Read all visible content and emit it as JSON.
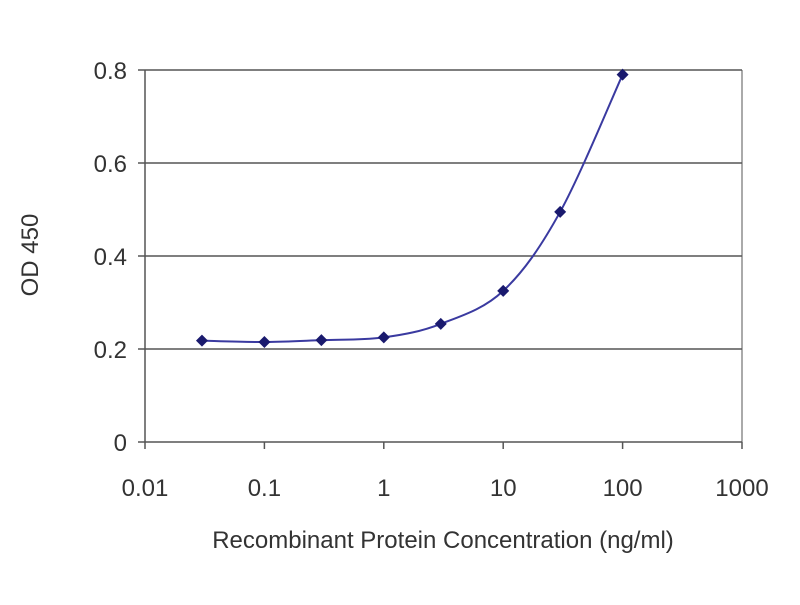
{
  "chart_data": {
    "type": "scatter",
    "title": "",
    "xlabel": "Recombinant Protein Concentration (ng/ml)",
    "ylabel": "OD 450",
    "x_scale": "log",
    "xlim": [
      0.01,
      1000
    ],
    "ylim": [
      0,
      0.8
    ],
    "x_ticks": [
      0.01,
      0.1,
      1,
      10,
      100,
      1000
    ],
    "x_tick_labels": [
      "0.01",
      "0.1",
      "1",
      "10",
      "100",
      "1000"
    ],
    "y_ticks": [
      0,
      0.2,
      0.4,
      0.6,
      0.8
    ],
    "y_tick_labels": [
      "0",
      "0.2",
      "0.4",
      "0.6",
      "0.8"
    ],
    "grid": "horizontal",
    "legend": "none",
    "series": [
      {
        "x": [
          0.03,
          0.1,
          0.3,
          1,
          3,
          10,
          30,
          100
        ],
        "y": [
          0.218,
          0.215,
          0.219,
          0.225,
          0.254,
          0.325,
          0.495,
          0.79
        ]
      }
    ],
    "colors": {
      "marker": "#1a1a6e",
      "curve": "#3a3aa0",
      "grid": "#555555",
      "axis": "#555555"
    }
  }
}
